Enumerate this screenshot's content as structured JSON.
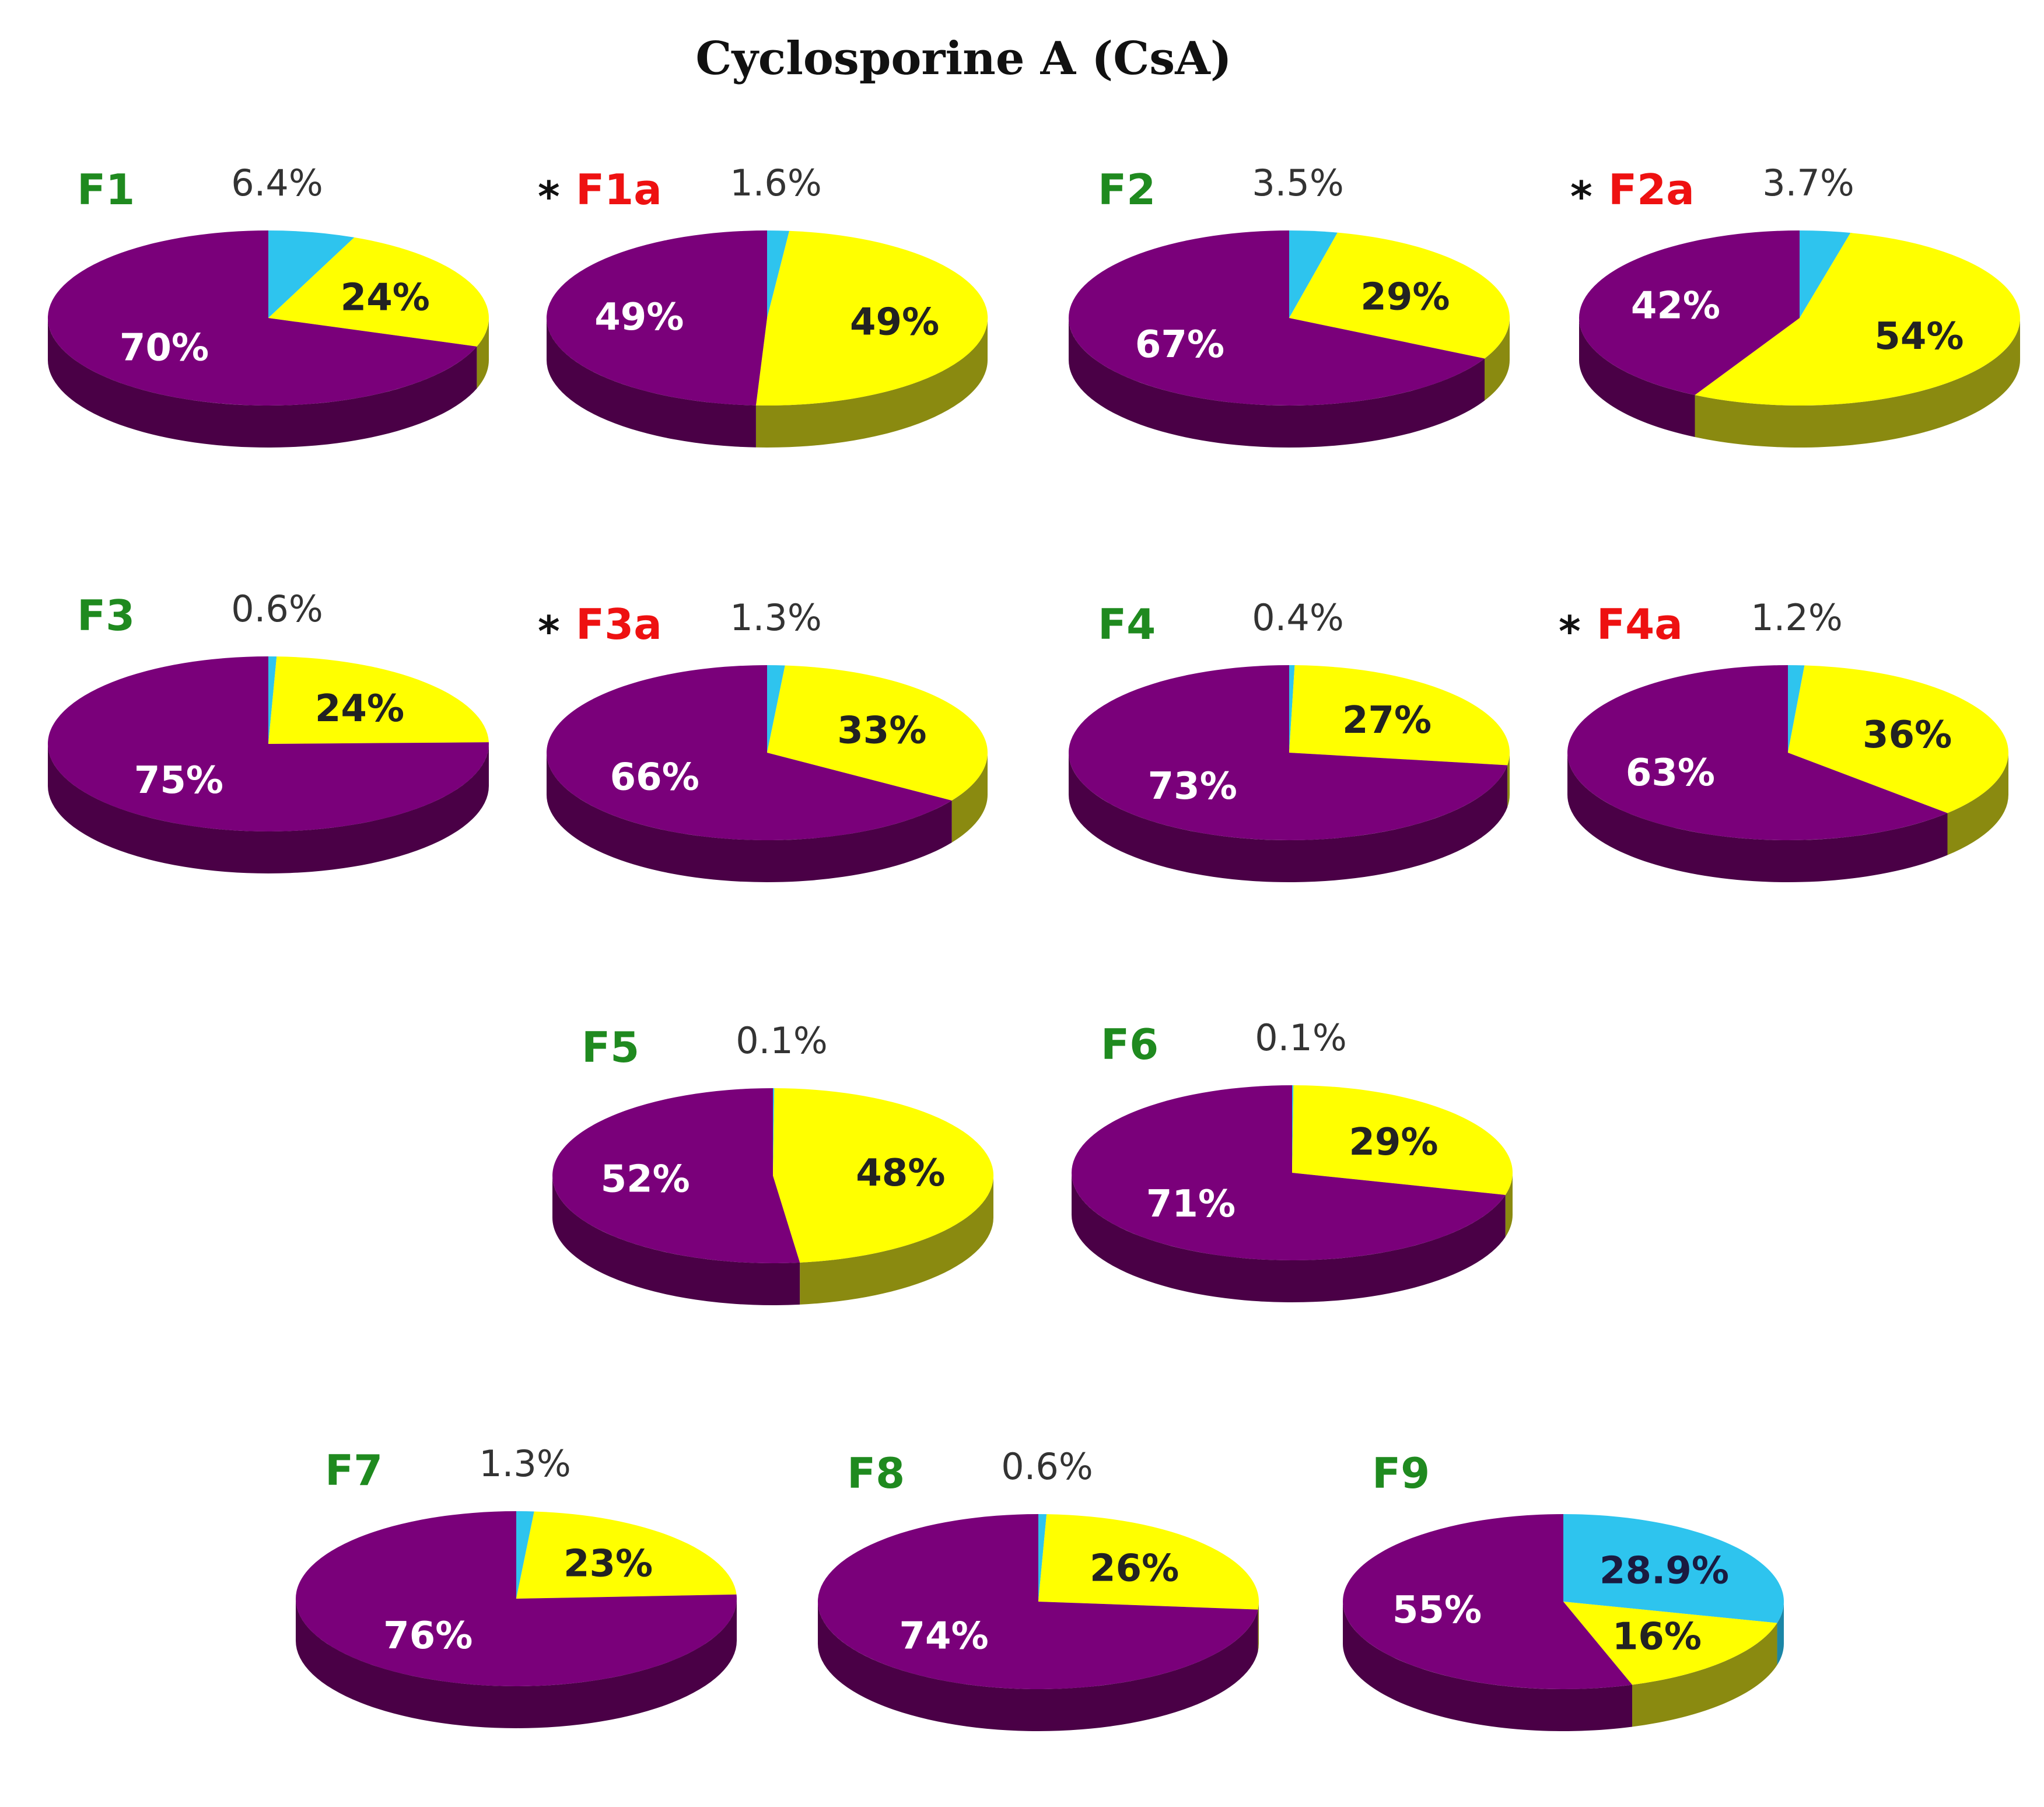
{
  "chart_data": {
    "type": "pie",
    "title": "Cyclosporine A (CsA)",
    "colors": {
      "cyan": "#2ec4ee",
      "yellow": "#ffff00",
      "purple": "#7a007a",
      "cyan_side": "#1b86a6",
      "yellow_side": "#8a8a10",
      "purple_side": "#4a0046",
      "name_green": "#1f8a1f",
      "name_red": "#ee1111",
      "star": "#111111"
    },
    "pies": [
      {
        "name": "F1",
        "starred": false,
        "name_color": "green",
        "slices": [
          {
            "key": "cyan",
            "value": 6.4,
            "label": "6.4%"
          },
          {
            "key": "yellow",
            "value": 24,
            "label": "24%"
          },
          {
            "key": "purple",
            "value": 70,
            "label": "70%"
          }
        ]
      },
      {
        "name": "F1a",
        "starred": true,
        "name_color": "red",
        "slices": [
          {
            "key": "cyan",
            "value": 1.6,
            "label": "1.6%"
          },
          {
            "key": "yellow",
            "value": 49,
            "label": "49%"
          },
          {
            "key": "purple",
            "value": 49,
            "label": "49%"
          }
        ]
      },
      {
        "name": "F2",
        "starred": false,
        "name_color": "green",
        "slices": [
          {
            "key": "cyan",
            "value": 3.5,
            "label": "3.5%"
          },
          {
            "key": "yellow",
            "value": 29,
            "label": "29%"
          },
          {
            "key": "purple",
            "value": 67,
            "label": "67%"
          }
        ]
      },
      {
        "name": "F2a",
        "starred": true,
        "name_color": "red",
        "slices": [
          {
            "key": "cyan",
            "value": 3.7,
            "label": "3.7%"
          },
          {
            "key": "yellow",
            "value": 54,
            "label": "54%"
          },
          {
            "key": "purple",
            "value": 42,
            "label": "42%"
          }
        ]
      },
      {
        "name": "F3",
        "starred": false,
        "name_color": "green",
        "slices": [
          {
            "key": "cyan",
            "value": 0.6,
            "label": "0.6%"
          },
          {
            "key": "yellow",
            "value": 24,
            "label": "24%"
          },
          {
            "key": "purple",
            "value": 75,
            "label": "75%"
          }
        ]
      },
      {
        "name": "F3a",
        "starred": true,
        "name_color": "red",
        "slices": [
          {
            "key": "cyan",
            "value": 1.3,
            "label": "1.3%"
          },
          {
            "key": "yellow",
            "value": 33,
            "label": "33%"
          },
          {
            "key": "purple",
            "value": 66,
            "label": "66%"
          }
        ]
      },
      {
        "name": "F4",
        "starred": false,
        "name_color": "green",
        "slices": [
          {
            "key": "cyan",
            "value": 0.4,
            "label": "0.4%"
          },
          {
            "key": "yellow",
            "value": 27,
            "label": "27%"
          },
          {
            "key": "purple",
            "value": 73,
            "label": "73%"
          }
        ]
      },
      {
        "name": "F4a",
        "starred": true,
        "name_color": "red",
        "slices": [
          {
            "key": "cyan",
            "value": 1.2,
            "label": "1.2%"
          },
          {
            "key": "yellow",
            "value": 36,
            "label": "36%"
          },
          {
            "key": "purple",
            "value": 63,
            "label": "63%"
          }
        ]
      },
      {
        "name": "F5",
        "starred": false,
        "name_color": "green",
        "slices": [
          {
            "key": "cyan",
            "value": 0.1,
            "label": "0.1%"
          },
          {
            "key": "yellow",
            "value": 48,
            "label": "48%"
          },
          {
            "key": "purple",
            "value": 52,
            "label": "52%"
          }
        ]
      },
      {
        "name": "F6",
        "starred": false,
        "name_color": "green",
        "slices": [
          {
            "key": "cyan",
            "value": 0.1,
            "label": "0.1%"
          },
          {
            "key": "yellow",
            "value": 29,
            "label": "29%"
          },
          {
            "key": "purple",
            "value": 71,
            "label": "71%"
          }
        ]
      },
      {
        "name": "F7",
        "starred": false,
        "name_color": "green",
        "slices": [
          {
            "key": "cyan",
            "value": 1.3,
            "label": "1.3%"
          },
          {
            "key": "yellow",
            "value": 23,
            "label": "23%"
          },
          {
            "key": "purple",
            "value": 76,
            "label": "76%"
          }
        ]
      },
      {
        "name": "F8",
        "starred": false,
        "name_color": "green",
        "slices": [
          {
            "key": "cyan",
            "value": 0.6,
            "label": "0.6%"
          },
          {
            "key": "yellow",
            "value": 26,
            "label": "26%"
          },
          {
            "key": "purple",
            "value": 74,
            "label": "74%"
          }
        ]
      },
      {
        "name": "F9",
        "starred": false,
        "name_color": "green",
        "slices": [
          {
            "key": "cyan",
            "value": 28.9,
            "label": "28.9%"
          },
          {
            "key": "yellow",
            "value": 16,
            "label": "16%"
          },
          {
            "key": "purple",
            "value": 55,
            "label": "55%"
          }
        ]
      }
    ]
  }
}
